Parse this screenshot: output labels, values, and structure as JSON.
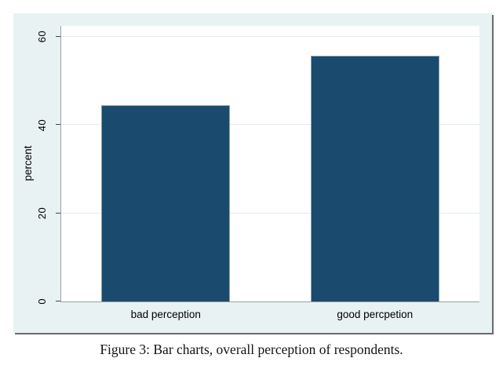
{
  "figure": {
    "caption": "Figure 3: Bar charts, overall perception of respondents."
  },
  "chart_data": {
    "type": "bar",
    "categories": [
      "bad perception",
      "good percpetion"
    ],
    "values": [
      44.4,
      55.6
    ],
    "title": "",
    "xlabel": "",
    "ylabel": "percent",
    "yticks": [
      0,
      20,
      40,
      60
    ],
    "ylim": [
      0,
      62.4
    ],
    "grid": true,
    "legend": false,
    "bar_color": "#1a4a6e",
    "figure_background": "#e9f2f3",
    "plot_background": "#ffffff",
    "gridline_color": "#e1ecee",
    "caption": "Figure 3: Bar charts, overall perception of respondents."
  }
}
